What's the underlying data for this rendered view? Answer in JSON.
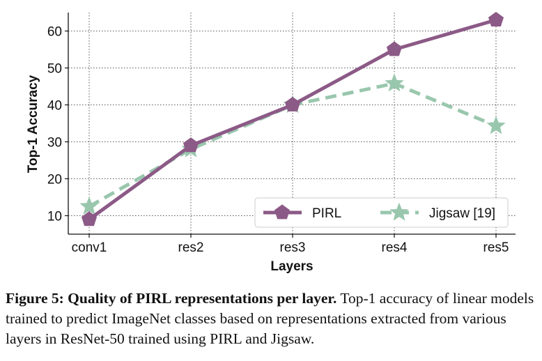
{
  "chart_data": {
    "type": "line",
    "categories": [
      "conv1",
      "res2",
      "res3",
      "res4",
      "res5"
    ],
    "series": [
      {
        "name": "PIRL",
        "values": [
          9,
          29,
          40,
          55,
          63
        ],
        "color": "#8c5a87",
        "marker": "pentagon",
        "line": "solid"
      },
      {
        "name": "Jigsaw [19]",
        "values": [
          12.5,
          28,
          40,
          45.8,
          34.3
        ],
        "color": "#99c7ad",
        "marker": "star",
        "line": "dashed"
      }
    ],
    "xlabel": "Layers",
    "ylabel": "Top-1 Accuracy",
    "ylim": [
      5,
      65
    ],
    "yticks": [
      10,
      20,
      30,
      40,
      50,
      60
    ],
    "grid": true,
    "legend_position": "bottom-right"
  },
  "caption": {
    "title": "Figure 5: Quality of PIRL representations per layer.",
    "text": "Top-1 accuracy of linear models trained to predict ImageNet classes based on representations extracted from various layers in ResNet-50 trained using PIRL and Jigsaw."
  }
}
